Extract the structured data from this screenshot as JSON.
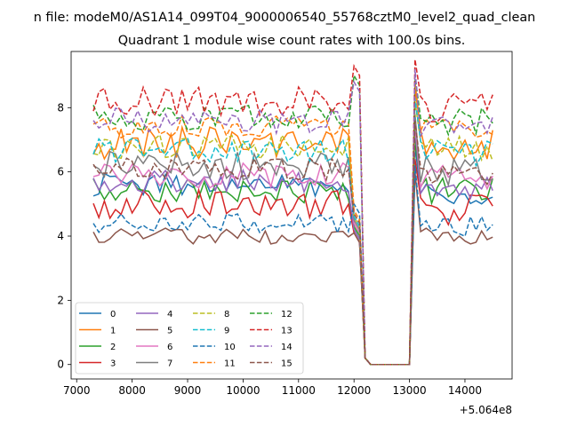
{
  "figure": {
    "suptitle": "n file: modeM0/AS1A14_099T04_9000006540_55768cztM0_level2_quad_clean",
    "offset_label": "+5.064e8"
  },
  "chart_data": {
    "type": "line",
    "title": "Quadrant 1 module wise count rates with 100.0s bins.",
    "xlabel": "",
    "ylabel": "",
    "xlim": [
      6900,
      14850
    ],
    "ylim": [
      -0.45,
      9.75
    ],
    "x_ticks": [
      7000,
      8000,
      9000,
      10000,
      11000,
      12000,
      13000,
      14000
    ],
    "x_tick_labels": [
      "7000",
      "8000",
      "9000",
      "10000",
      "11000",
      "12000",
      "13000",
      "14000"
    ],
    "y_ticks": [
      0,
      2,
      4,
      6,
      8
    ],
    "y_tick_labels": [
      "0",
      "2",
      "4",
      "6",
      "8"
    ],
    "x_offset": "+5.064e8",
    "legend_position": "lower-left",
    "x_segments": [
      {
        "start": 7300,
        "end": 12000,
        "step": 100
      },
      {
        "start": 12100,
        "end": 13100,
        "step": 100
      },
      {
        "start": 13200,
        "end": 14500,
        "step": 100
      }
    ],
    "series": [
      {
        "name": "0",
        "color": "#1f77b4",
        "style": "solid",
        "base": 5.6,
        "amp": 0.35,
        "ramp_to": 4.2,
        "gap_level": 0.0,
        "post_base": 5.3,
        "post_peak": 6.8
      },
      {
        "name": "1",
        "color": "#ff7f0e",
        "style": "solid",
        "base": 6.9,
        "amp": 0.5,
        "ramp_to": 4.4,
        "gap_level": 0.0,
        "post_base": 6.8,
        "post_peak": 8.6
      },
      {
        "name": "2",
        "color": "#2ca02c",
        "style": "solid",
        "base": 5.4,
        "amp": 0.4,
        "ramp_to": 4.3,
        "gap_level": 0.0,
        "post_base": 5.4,
        "post_peak": 7.0
      },
      {
        "name": "3",
        "color": "#d62728",
        "style": "solid",
        "base": 5.0,
        "amp": 0.45,
        "ramp_to": 4.1,
        "gap_level": 0.0,
        "post_base": 4.8,
        "post_peak": 6.4
      },
      {
        "name": "4",
        "color": "#9467bd",
        "style": "solid",
        "base": 5.7,
        "amp": 0.35,
        "ramp_to": 4.2,
        "gap_level": 0.0,
        "post_base": 5.5,
        "post_peak": 7.4
      },
      {
        "name": "5",
        "color": "#8c564b",
        "style": "solid",
        "base": 4.0,
        "amp": 0.25,
        "ramp_to": 4.1,
        "gap_level": 0.0,
        "post_base": 4.0,
        "post_peak": 6.0
      },
      {
        "name": "6",
        "color": "#e377c2",
        "style": "solid",
        "base": 5.9,
        "amp": 0.4,
        "ramp_to": 4.4,
        "gap_level": 0.0,
        "post_base": 5.8,
        "post_peak": 7.6
      },
      {
        "name": "7",
        "color": "#7f7f7f",
        "style": "solid",
        "base": 6.2,
        "amp": 0.45,
        "ramp_to": 4.5,
        "gap_level": 0.0,
        "post_base": 6.0,
        "post_peak": 7.8
      },
      {
        "name": "8",
        "color": "#bcbd22",
        "style": "dashed",
        "base": 6.8,
        "amp": 0.4,
        "ramp_to": 4.6,
        "gap_level": 0.0,
        "post_base": 6.7,
        "post_peak": 8.2
      },
      {
        "name": "9",
        "color": "#17becf",
        "style": "dashed",
        "base": 6.7,
        "amp": 0.4,
        "ramp_to": 4.6,
        "gap_level": 0.0,
        "post_base": 6.6,
        "post_peak": 8.3
      },
      {
        "name": "10",
        "color": "#1f77b4",
        "style": "dashed",
        "base": 4.4,
        "amp": 0.3,
        "ramp_to": 5.0,
        "gap_level": 0.0,
        "post_base": 4.3,
        "post_peak": 6.2
      },
      {
        "name": "11",
        "color": "#ff7f0e",
        "style": "dashed",
        "base": 7.4,
        "amp": 0.35,
        "ramp_to": 4.8,
        "gap_level": 0.0,
        "post_base": 7.3,
        "post_peak": 8.8
      },
      {
        "name": "12",
        "color": "#2ca02c",
        "style": "dashed",
        "base": 7.7,
        "amp": 0.4,
        "ramp_to": 9.0,
        "gap_level": 0.0,
        "post_base": 7.6,
        "post_peak": 9.0
      },
      {
        "name": "13",
        "color": "#d62728",
        "style": "dashed",
        "base": 8.2,
        "amp": 0.45,
        "ramp_to": 9.3,
        "gap_level": 0.0,
        "post_base": 8.0,
        "post_peak": 9.5
      },
      {
        "name": "14",
        "color": "#9467bd",
        "style": "dashed",
        "base": 7.6,
        "amp": 0.4,
        "ramp_to": 8.8,
        "gap_level": 0.0,
        "post_base": 7.4,
        "post_peak": 9.2
      },
      {
        "name": "15",
        "color": "#8c564b",
        "style": "dashed",
        "base": 6.1,
        "amp": 0.35,
        "ramp_to": 4.7,
        "gap_level": 0.0,
        "post_base": 5.9,
        "post_peak": 7.6
      }
    ]
  }
}
